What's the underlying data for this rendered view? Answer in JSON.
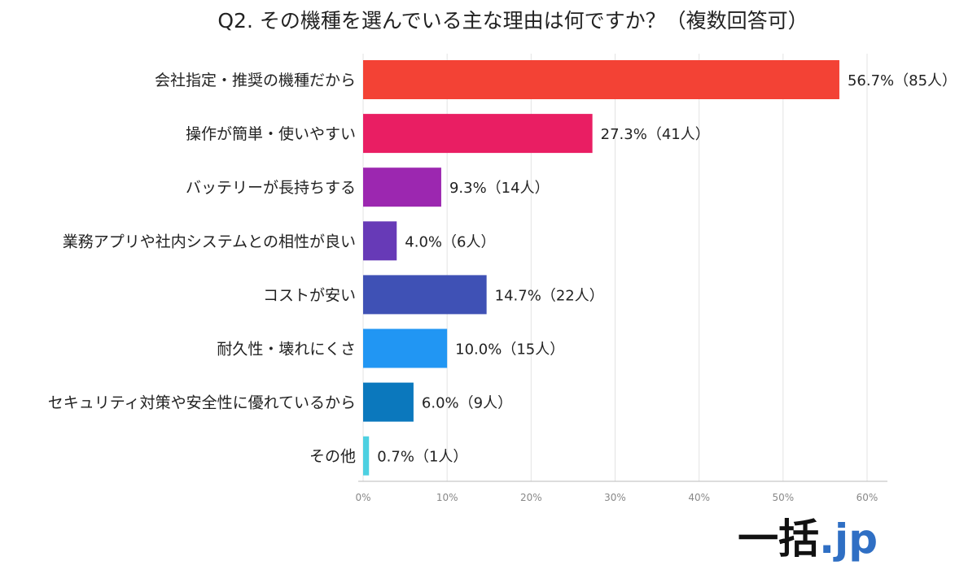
{
  "chart_data": {
    "type": "bar",
    "orientation": "horizontal",
    "title": "Q2. その機種を選んでいる主な理由は何ですか？（複数回答可）",
    "categories": [
      "会社指定・推奨の機種だから",
      "操作が簡単・使いやすい",
      "バッテリーが長持ちする",
      "業務アプリや社内システムとの相性が良い",
      "コストが安い",
      "耐久性・壊れにくさ",
      "セキュリティ対策や安全性に優れているから",
      "その他"
    ],
    "values": [
      56.7,
      27.3,
      9.3,
      4.0,
      14.7,
      10.0,
      6.0,
      0.7
    ],
    "data_labels": [
      "56.7%（85人）",
      "27.3%（41人）",
      "9.3%（14人）",
      "4.0%（6人）",
      "14.7%（22人）",
      "10.0%（15人）",
      "6.0%（9人）",
      "0.7%（1人）"
    ],
    "colors": [
      "#f34235",
      "#e91e63",
      "#9c27b0",
      "#673ab7",
      "#3f51b5",
      "#2196f3",
      "#0b78bd",
      "#4dd0e1"
    ],
    "xlim": [
      0,
      60
    ],
    "xticks": [
      0,
      10,
      20,
      30,
      40,
      50,
      60
    ],
    "xtick_labels": [
      "0%",
      "10%",
      "20%",
      "30%",
      "40%",
      "50%",
      "60%"
    ],
    "xlabel": "",
    "ylabel": "",
    "grid": true,
    "legend": "none"
  },
  "logo": {
    "main": "一括",
    "tld": ".jp"
  }
}
